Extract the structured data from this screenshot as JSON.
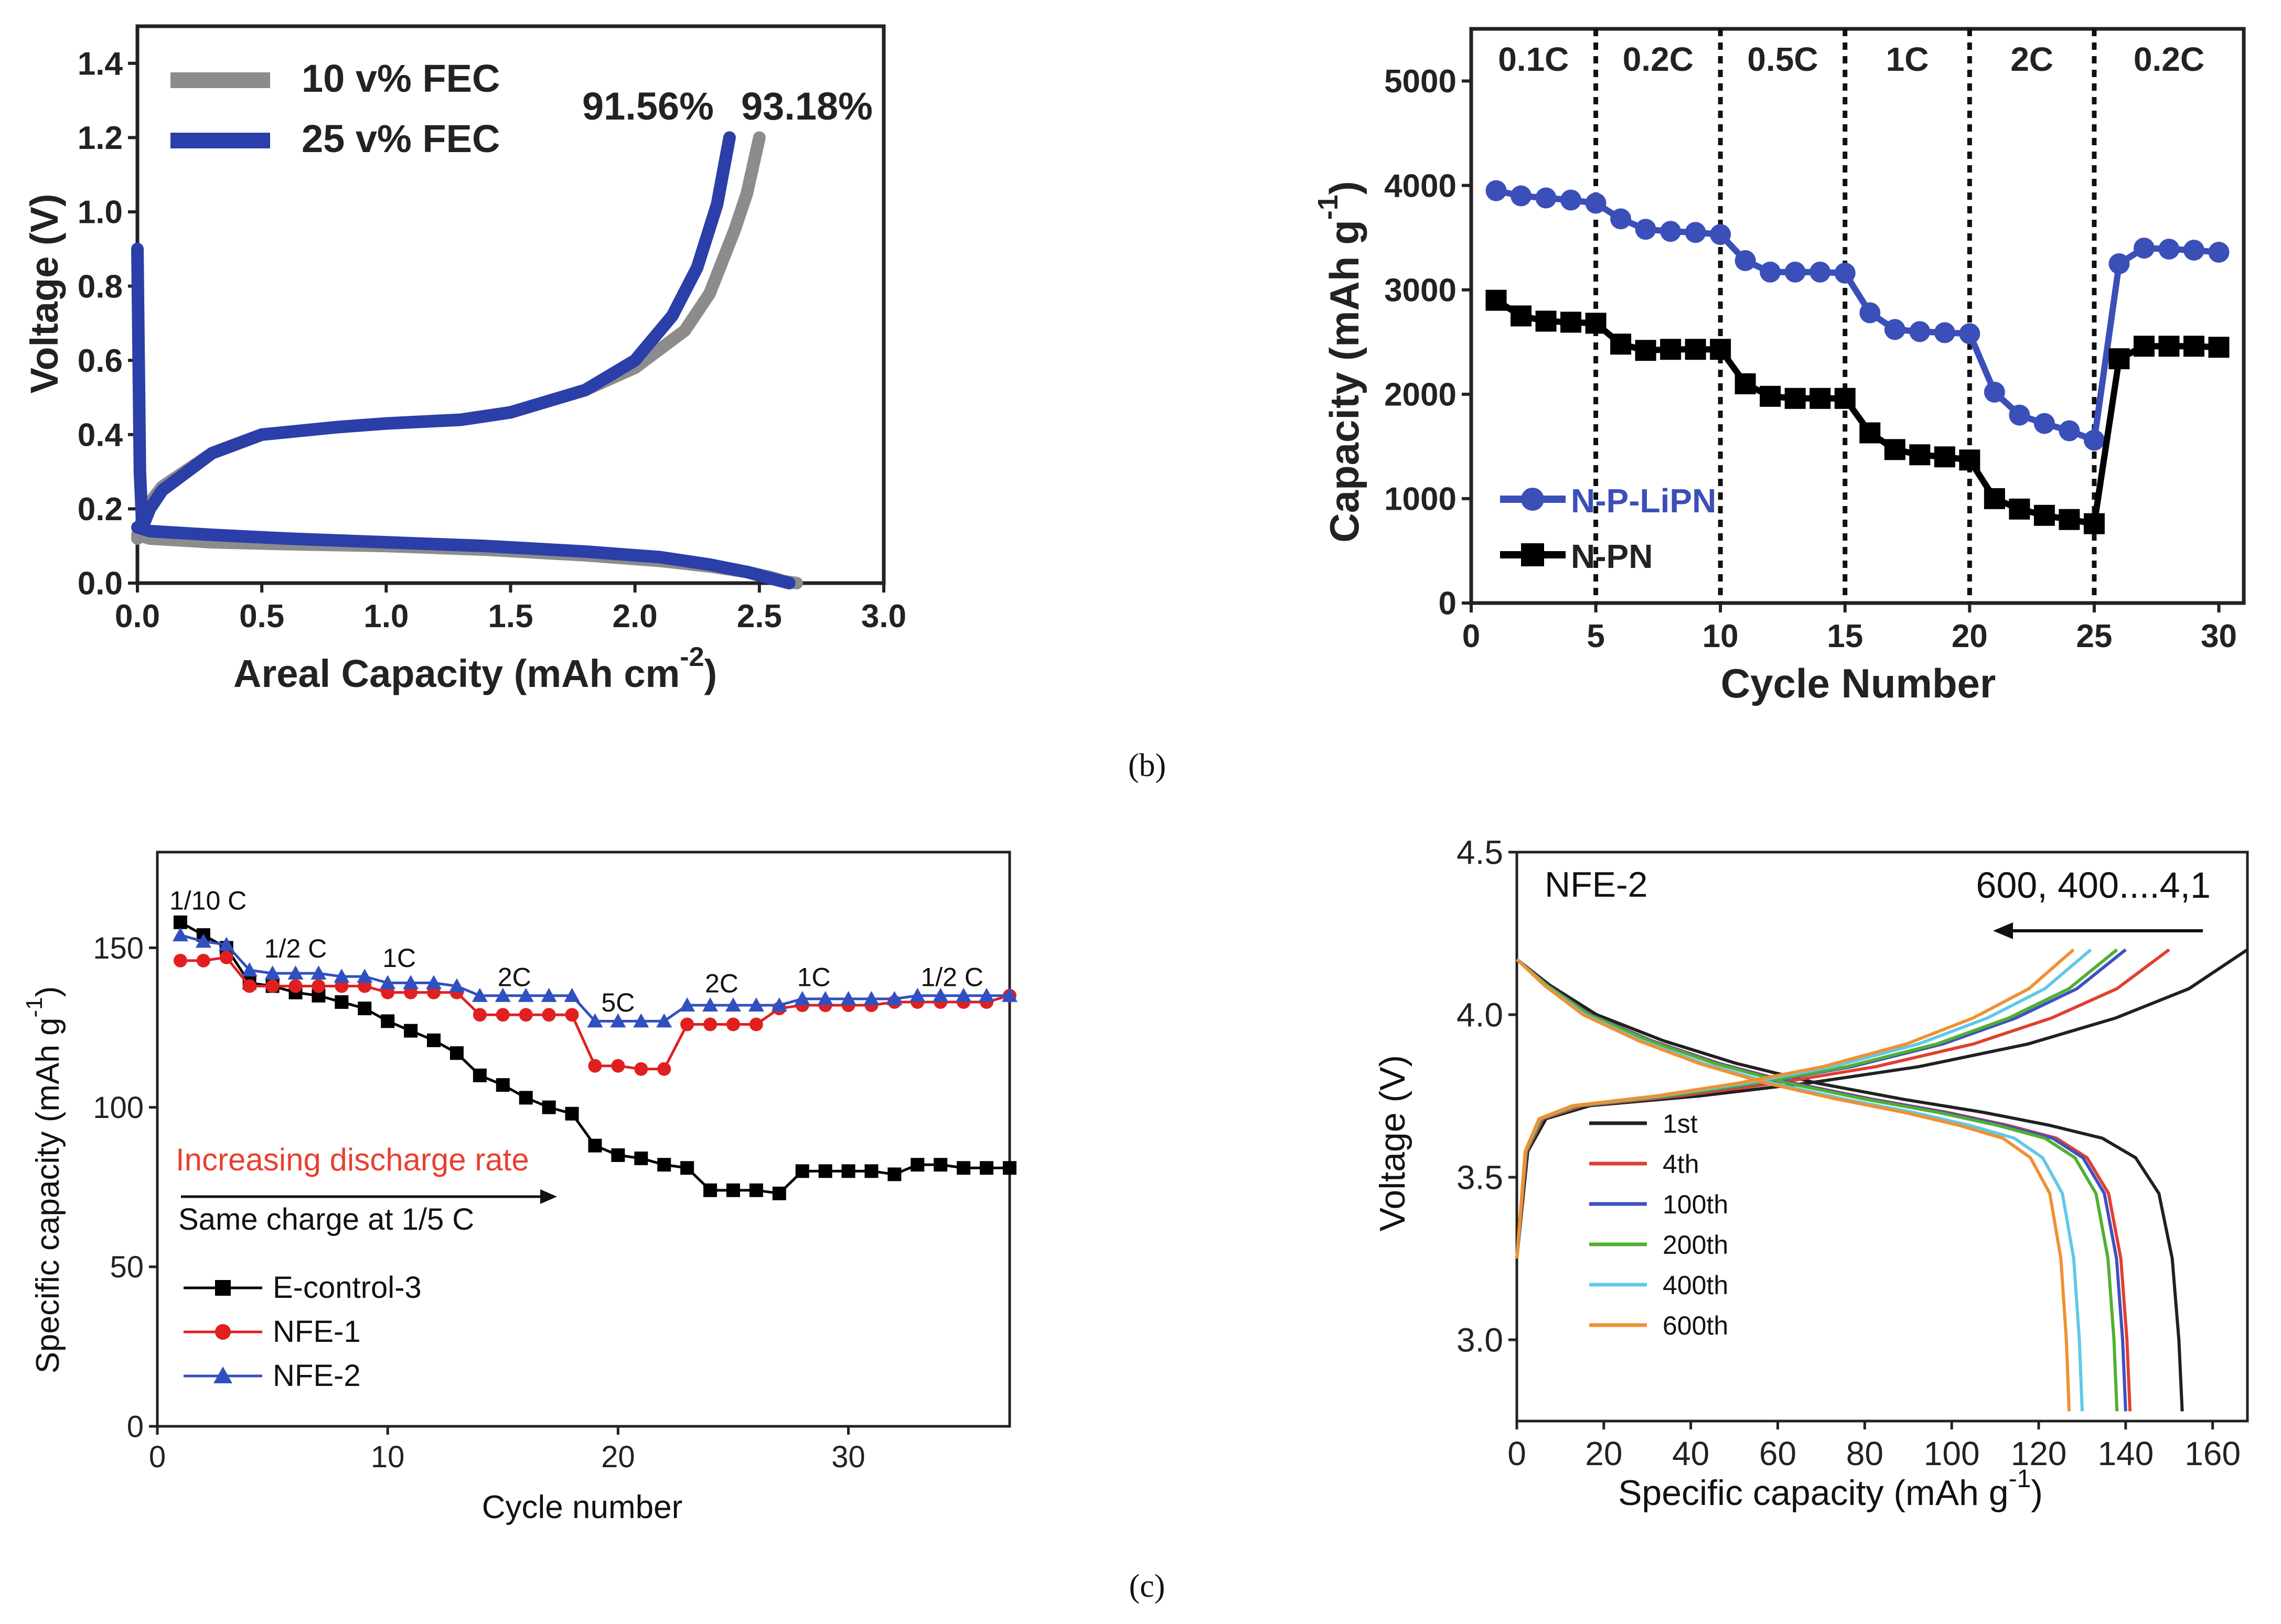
{
  "captions": {
    "b": "(b)",
    "c": "(c)"
  },
  "chart_data": [
    {
      "id": "A",
      "type": "line",
      "xlabel": "Areal Capacity (mAh cm",
      "xlabel_sup": "-2",
      "xlabel_end": ")",
      "ylabel": "Voltage (V)",
      "xlim": [
        0,
        3.0
      ],
      "ylim": [
        0,
        1.5
      ],
      "xticks": [
        0.0,
        0.5,
        1.0,
        1.5,
        2.0,
        2.5,
        3.0
      ],
      "xtick_labels": [
        "0.0",
        "0.5",
        "1.0",
        "1.5",
        "2.0",
        "2.5",
        "3.0"
      ],
      "yticks": [
        0.0,
        0.2,
        0.4,
        0.6,
        0.8,
        1.0,
        1.2,
        1.4
      ],
      "ytick_labels": [
        "0.0",
        "0.2",
        "0.4",
        "0.6",
        "0.8",
        "1.0",
        "1.2",
        "1.4"
      ],
      "legend": [
        "10 v% FEC",
        "25 v% FEC"
      ],
      "annotations": [
        "91.56%",
        "93.18%"
      ],
      "colors": {
        "fec10": "#8c8c8c",
        "fec25": "#2b3fa8"
      },
      "series": [
        {
          "name": "10 v% FEC",
          "curve": "charge",
          "x": [
            0.0,
            0.03,
            0.1,
            0.3,
            0.5,
            0.8,
            1.0,
            1.3,
            1.5,
            1.8,
            2.0,
            2.2,
            2.3,
            2.4,
            2.45,
            2.5
          ],
          "y": [
            0.12,
            0.2,
            0.26,
            0.35,
            0.4,
            0.42,
            0.43,
            0.44,
            0.46,
            0.52,
            0.58,
            0.68,
            0.78,
            0.95,
            1.05,
            1.2
          ]
        },
        {
          "name": "10 v% FEC",
          "curve": "discharge",
          "x": [
            0.0,
            0.05,
            0.3,
            0.6,
            1.0,
            1.4,
            1.8,
            2.1,
            2.3,
            2.45,
            2.55,
            2.6,
            2.65
          ],
          "y": [
            0.13,
            0.12,
            0.11,
            0.105,
            0.1,
            0.09,
            0.075,
            0.06,
            0.045,
            0.03,
            0.015,
            0.005,
            0.0
          ]
        },
        {
          "name": "25 v% FEC",
          "curve": "charge",
          "x": [
            0.0,
            0.01,
            0.02,
            0.05,
            0.1,
            0.3,
            0.5,
            0.8,
            1.0,
            1.3,
            1.5,
            1.8,
            2.0,
            2.15,
            2.25,
            2.33,
            2.38
          ],
          "y": [
            0.9,
            0.3,
            0.15,
            0.2,
            0.25,
            0.35,
            0.4,
            0.42,
            0.43,
            0.44,
            0.46,
            0.52,
            0.6,
            0.72,
            0.85,
            1.02,
            1.2
          ]
        },
        {
          "name": "25 v% FEC",
          "curve": "discharge",
          "x": [
            0.0,
            0.05,
            0.3,
            0.6,
            1.0,
            1.4,
            1.8,
            2.1,
            2.3,
            2.45,
            2.55,
            2.62
          ],
          "y": [
            0.15,
            0.14,
            0.13,
            0.12,
            0.11,
            0.1,
            0.085,
            0.07,
            0.05,
            0.03,
            0.012,
            0.0
          ]
        }
      ]
    },
    {
      "id": "B",
      "type": "line",
      "xlabel": "Cycle Number",
      "ylabel": "Capacity (mAh g",
      "ylabel_sup": "-1",
      "ylabel_end": ")",
      "xlim": [
        0,
        31
      ],
      "ylim": [
        0,
        5500
      ],
      "xticks": [
        0,
        5,
        10,
        15,
        20,
        25,
        30
      ],
      "xtick_labels": [
        "0",
        "5",
        "10",
        "15",
        "20",
        "25",
        "30"
      ],
      "yticks": [
        0,
        1000,
        2000,
        3000,
        4000,
        5000
      ],
      "ytick_labels": [
        "0",
        "1000",
        "2000",
        "3000",
        "4000",
        "5000"
      ],
      "rate_boundaries": [
        5,
        10,
        15,
        20,
        25
      ],
      "rate_labels": [
        {
          "x": 2.5,
          "text": "0.1C"
        },
        {
          "x": 7.5,
          "text": "0.2C"
        },
        {
          "x": 12.5,
          "text": "0.5C"
        },
        {
          "x": 17.5,
          "text": "1C"
        },
        {
          "x": 22.5,
          "text": "2C"
        },
        {
          "x": 28,
          "text": "0.2C"
        }
      ],
      "legend": [
        "N-P-LiPN",
        "N-PN"
      ],
      "colors": {
        "nplipn": "#3b4fb8",
        "npn": "#000000"
      },
      "series": [
        {
          "name": "N-P-LiPN",
          "x": [
            1,
            2,
            3,
            4,
            5,
            6,
            7,
            8,
            9,
            10,
            11,
            12,
            13,
            14,
            15,
            16,
            17,
            18,
            19,
            20,
            21,
            22,
            23,
            24,
            25,
            26,
            27,
            28,
            29,
            30
          ],
          "y": [
            3950,
            3900,
            3880,
            3860,
            3830,
            3680,
            3580,
            3560,
            3550,
            3530,
            3280,
            3170,
            3170,
            3170,
            3160,
            2780,
            2620,
            2600,
            2590,
            2580,
            2020,
            1800,
            1720,
            1650,
            1560,
            3250,
            3400,
            3390,
            3380,
            3360
          ]
        },
        {
          "name": "N-PN",
          "x": [
            1,
            2,
            3,
            4,
            5,
            6,
            7,
            8,
            9,
            10,
            11,
            12,
            13,
            14,
            15,
            16,
            17,
            18,
            19,
            20,
            21,
            22,
            23,
            24,
            25,
            26,
            27,
            28,
            29,
            30
          ],
          "y": [
            2900,
            2750,
            2700,
            2690,
            2680,
            2480,
            2420,
            2430,
            2430,
            2430,
            2100,
            1980,
            1960,
            1960,
            1960,
            1630,
            1470,
            1420,
            1400,
            1370,
            1000,
            900,
            840,
            800,
            760,
            2340,
            2460,
            2460,
            2460,
            2450
          ]
        }
      ]
    },
    {
      "id": "C",
      "type": "line",
      "xlabel": "Cycle number",
      "ylabel": "Specific capacity (mAh g",
      "ylabel_sup": "-1",
      "ylabel_end": ")",
      "xlim": [
        0,
        37
      ],
      "ylim": [
        0,
        180
      ],
      "xticks": [
        0,
        10,
        20,
        30
      ],
      "xtick_labels": [
        "0",
        "10",
        "20",
        "30"
      ],
      "yticks": [
        0,
        50,
        100,
        150
      ],
      "ytick_labels": [
        "0",
        "50",
        "100",
        "150"
      ],
      "rate_labels": [
        {
          "x": 2.2,
          "y": 162,
          "text": "1/10 C"
        },
        {
          "x": 6,
          "y": 147,
          "text": "1/2 C"
        },
        {
          "x": 10.5,
          "y": 144,
          "text": "1C"
        },
        {
          "x": 15.5,
          "y": 138,
          "text": "2C"
        },
        {
          "x": 20,
          "y": 130,
          "text": "5C"
        },
        {
          "x": 24.5,
          "y": 136,
          "text": "2C"
        },
        {
          "x": 28.5,
          "y": 138,
          "text": "1C"
        },
        {
          "x": 34.5,
          "y": 138,
          "text": "1/2 C"
        }
      ],
      "annotations": {
        "increasing": "Increasing discharge rate",
        "same_charge": "Same charge at 1/5 C"
      },
      "legend": [
        "E-control-3",
        "NFE-1",
        "NFE-2"
      ],
      "colors": {
        "econtrol": "#000000",
        "nfe1": "#e02020",
        "nfe2": "#3050c0",
        "increasing": "#e84030"
      },
      "series": [
        {
          "name": "E-control-3",
          "x": [
            1,
            2,
            3,
            4,
            5,
            6,
            7,
            8,
            9,
            10,
            11,
            12,
            13,
            14,
            15,
            16,
            17,
            18,
            19,
            20,
            21,
            22,
            23,
            24,
            25,
            26,
            27,
            28,
            29,
            30,
            31,
            32,
            33,
            34,
            35,
            36,
            37
          ],
          "y": [
            158,
            154,
            150,
            139,
            138,
            136,
            135,
            133,
            131,
            127,
            124,
            121,
            117,
            110,
            107,
            103,
            100,
            98,
            88,
            85,
            84,
            82,
            81,
            74,
            74,
            74,
            73,
            80,
            80,
            80,
            80,
            79,
            82,
            82,
            81,
            81,
            81
          ]
        },
        {
          "name": "NFE-1",
          "x": [
            1,
            2,
            3,
            4,
            5,
            6,
            7,
            8,
            9,
            10,
            11,
            12,
            13,
            14,
            15,
            16,
            17,
            18,
            19,
            20,
            21,
            22,
            23,
            24,
            25,
            26,
            27,
            28,
            29,
            30,
            31,
            32,
            33,
            34,
            35,
            36,
            37
          ],
          "y": [
            146,
            146,
            147,
            138,
            138,
            138,
            138,
            138,
            138,
            136,
            136,
            136,
            136,
            129,
            129,
            129,
            129,
            129,
            113,
            113,
            112,
            112,
            126,
            126,
            126,
            126,
            131,
            132,
            132,
            132,
            132,
            133,
            133,
            133,
            133,
            133,
            135
          ]
        },
        {
          "name": "NFE-2",
          "x": [
            1,
            2,
            3,
            4,
            5,
            6,
            7,
            8,
            9,
            10,
            11,
            12,
            13,
            14,
            15,
            16,
            17,
            18,
            19,
            20,
            21,
            22,
            23,
            24,
            25,
            26,
            27,
            28,
            29,
            30,
            31,
            32,
            33,
            34,
            35,
            36,
            37
          ],
          "y": [
            154,
            152,
            151,
            143,
            142,
            142,
            142,
            141,
            141,
            139,
            139,
            139,
            138,
            135,
            135,
            135,
            135,
            135,
            127,
            127,
            127,
            127,
            132,
            132,
            132,
            132,
            132,
            134,
            134,
            134,
            134,
            134,
            135,
            135,
            135,
            135,
            135
          ]
        }
      ]
    },
    {
      "id": "D",
      "type": "line",
      "xlabel": "Specific capacity (mAh g",
      "xlabel_sup": "-1",
      "xlabel_end": ")",
      "ylabel": "Voltage (V)",
      "xlim": [
        0,
        168
      ],
      "ylim": [
        2.75,
        4.5
      ],
      "xticks": [
        0,
        20,
        40,
        60,
        80,
        100,
        120,
        140,
        160
      ],
      "xtick_labels": [
        "0",
        "20",
        "40",
        "60",
        "80",
        "100",
        "120",
        "140",
        "160"
      ],
      "yticks": [
        3.0,
        3.5,
        4.0,
        4.5
      ],
      "ytick_labels": [
        "3.0",
        "3.5",
        "4.0",
        "4.5"
      ],
      "title": "NFE-2",
      "annotation": "600, 400....4,1",
      "legend": [
        "1st",
        "4th",
        "100th",
        "200th",
        "400th",
        "600th"
      ],
      "colors": [
        "#202020",
        "#e04030",
        "#4050c0",
        "#50b030",
        "#60c8e8",
        "#f09030"
      ],
      "series": [
        {
          "name": "1st",
          "cap": 153,
          "chg": 168
        },
        {
          "name": "4th",
          "cap": 141,
          "chg": 150
        },
        {
          "name": "100th",
          "cap": 140,
          "chg": 140
        },
        {
          "name": "200th",
          "cap": 138,
          "chg": 138
        },
        {
          "name": "400th",
          "cap": 130,
          "chg": 132
        },
        {
          "name": "600th",
          "cap": 127,
          "chg": 128
        }
      ]
    }
  ]
}
